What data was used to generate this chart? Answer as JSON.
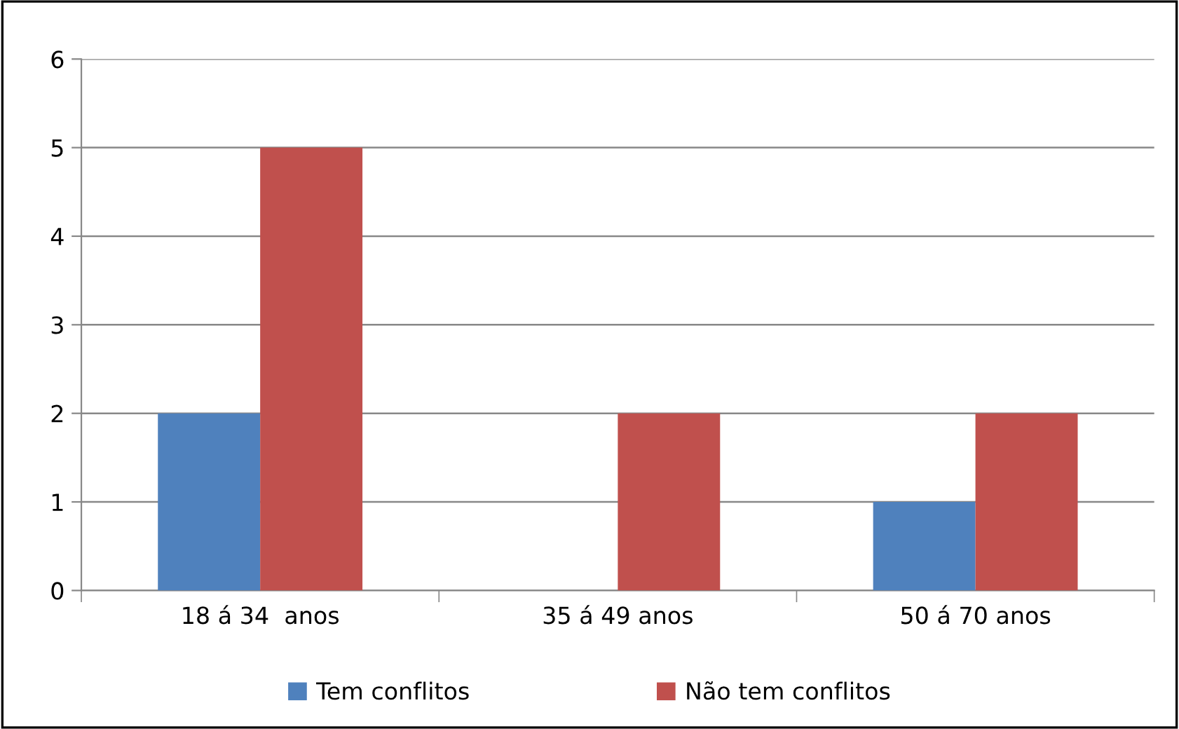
{
  "chart_data": {
    "type": "bar",
    "categories": [
      "18 á 34  anos",
      "35 á 49 anos",
      "50 á 70 anos"
    ],
    "series": [
      {
        "name": "Tem conflitos",
        "color": "#4f81bd",
        "values": [
          2,
          0,
          1
        ]
      },
      {
        "name": "Não tem conflitos",
        "color": "#c0504d",
        "values": [
          5,
          2,
          2
        ]
      }
    ],
    "ylim": [
      0,
      6
    ],
    "yticks": [
      0,
      1,
      2,
      3,
      4,
      5,
      6
    ],
    "grid": "y",
    "legend": "bottom"
  }
}
